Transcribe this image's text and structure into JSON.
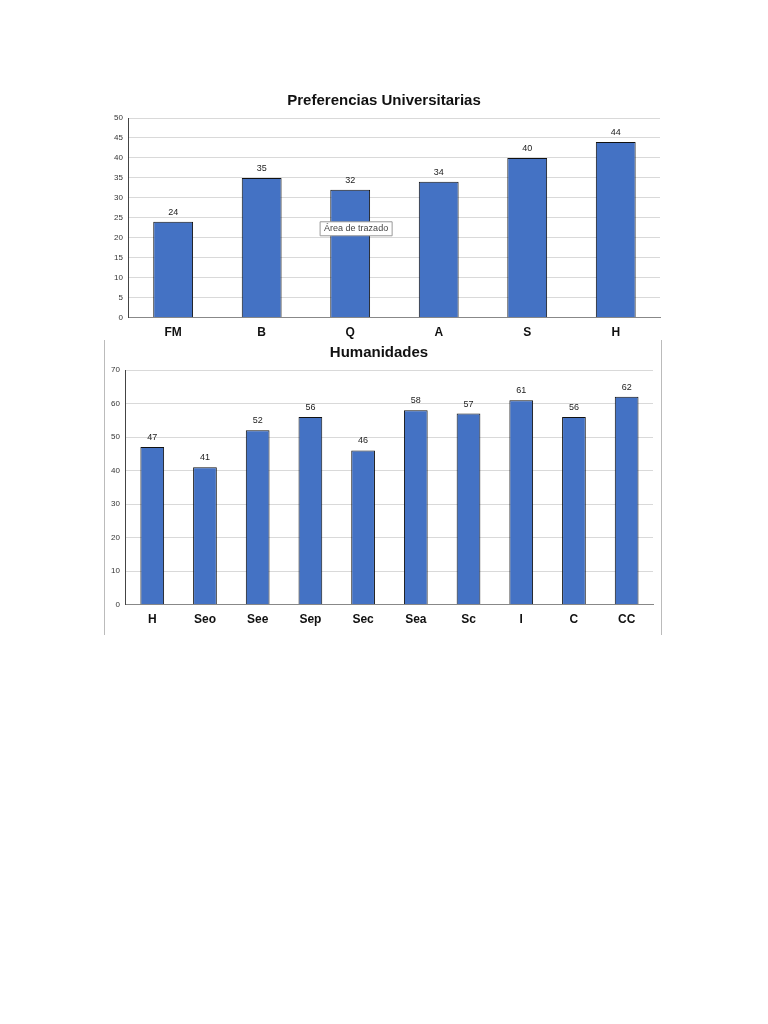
{
  "chart_data": [
    {
      "type": "bar",
      "title": "Preferencias Universitarias",
      "categories": [
        "FM",
        "B",
        "Q",
        "A",
        "S",
        "H"
      ],
      "values": [
        24,
        35,
        32,
        34,
        40,
        44
      ],
      "color": "#4472c4",
      "ylim": [
        0,
        50
      ],
      "yticks": [
        0,
        5,
        10,
        15,
        20,
        25,
        30,
        35,
        40,
        45,
        50
      ],
      "grid": "y",
      "data_labels": true,
      "annotations": [
        "Área de trazado"
      ]
    },
    {
      "type": "bar",
      "title": "Humanidades",
      "categories": [
        "H",
        "Seo",
        "See",
        "Sep",
        "Sec",
        "Sea",
        "Sc",
        "I",
        "C",
        "CC"
      ],
      "values": [
        47,
        41,
        52,
        56,
        46,
        58,
        57,
        61,
        56,
        62
      ],
      "color": "#4472c4",
      "ylim": [
        0,
        70
      ],
      "yticks": [
        0,
        10,
        20,
        30,
        40,
        50,
        60,
        70
      ],
      "grid": "y",
      "data_labels": true
    }
  ]
}
